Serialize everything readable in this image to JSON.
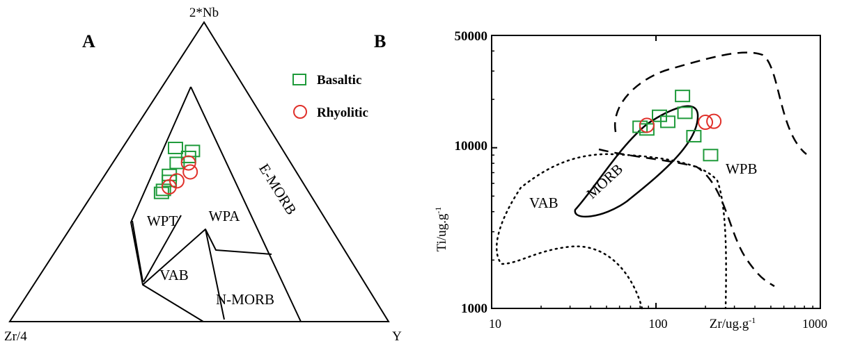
{
  "chart_data": [
    {
      "type": "scatter",
      "panel": "A",
      "diagram": "ternary",
      "vertices": [
        "2*Nb",
        "Zr/4",
        "Y"
      ],
      "fields": [
        "WPT",
        "WPA",
        "E-MORB",
        "VAB",
        "N-MORB"
      ],
      "legend": {
        "placement": "right-of-triangle",
        "entries": [
          {
            "name": "Basaltic",
            "marker": "square",
            "color": "#1e9a3a"
          },
          {
            "name": "Rhyolitic",
            "marker": "circle",
            "color": "#e0302a"
          }
        ]
      },
      "series": [
        {
          "name": "Basaltic",
          "points": [
            {
              "nb": 0.58,
              "zr": 0.28,
              "y": 0.14
            },
            {
              "nb": 0.57,
              "zr": 0.24,
              "y": 0.19
            },
            {
              "nb": 0.55,
              "zr": 0.26,
              "y": 0.19
            },
            {
              "nb": 0.53,
              "zr": 0.3,
              "y": 0.17
            },
            {
              "nb": 0.49,
              "zr": 0.34,
              "y": 0.17
            },
            {
              "nb": 0.47,
              "zr": 0.35,
              "y": 0.18
            },
            {
              "nb": 0.44,
              "zr": 0.38,
              "y": 0.18
            },
            {
              "nb": 0.43,
              "zr": 0.39,
              "y": 0.18
            }
          ]
        },
        {
          "name": "Rhyolitic",
          "points": [
            {
              "nb": 0.53,
              "zr": 0.27,
              "y": 0.2
            },
            {
              "nb": 0.5,
              "zr": 0.28,
              "y": 0.22
            },
            {
              "nb": 0.47,
              "zr": 0.33,
              "y": 0.2
            },
            {
              "nb": 0.45,
              "zr": 0.36,
              "y": 0.19
            }
          ]
        }
      ]
    },
    {
      "type": "scatter",
      "panel": "B",
      "xlabel": "Zr/ug.g-1",
      "ylabel": "Ti/ug.g-1",
      "xscale": "log",
      "yscale": "log",
      "xlim": [
        10,
        1000
      ],
      "ylim": [
        1000,
        50000
      ],
      "xticks": [
        "10",
        "100",
        "1000"
      ],
      "yticks": [
        "1000",
        "10000",
        "50000"
      ],
      "grid": false,
      "fields": [
        "VAB",
        "MORB",
        "WPB"
      ],
      "series": [
        {
          "name": "Basaltic",
          "marker": "square",
          "color": "#1e9a3a",
          "points": [
            {
              "x": 80,
              "y": 13500
            },
            {
              "x": 88,
              "y": 13000
            },
            {
              "x": 105,
              "y": 15800
            },
            {
              "x": 118,
              "y": 14500
            },
            {
              "x": 145,
              "y": 21000
            },
            {
              "x": 150,
              "y": 16500
            },
            {
              "x": 170,
              "y": 11800
            },
            {
              "x": 215,
              "y": 9000
            }
          ]
        },
        {
          "name": "Rhyolitic",
          "marker": "circle",
          "color": "#e0302a",
          "points": [
            {
              "x": 88,
              "y": 13800
            },
            {
              "x": 200,
              "y": 14400
            },
            {
              "x": 225,
              "y": 14600
            }
          ]
        }
      ]
    }
  ]
}
